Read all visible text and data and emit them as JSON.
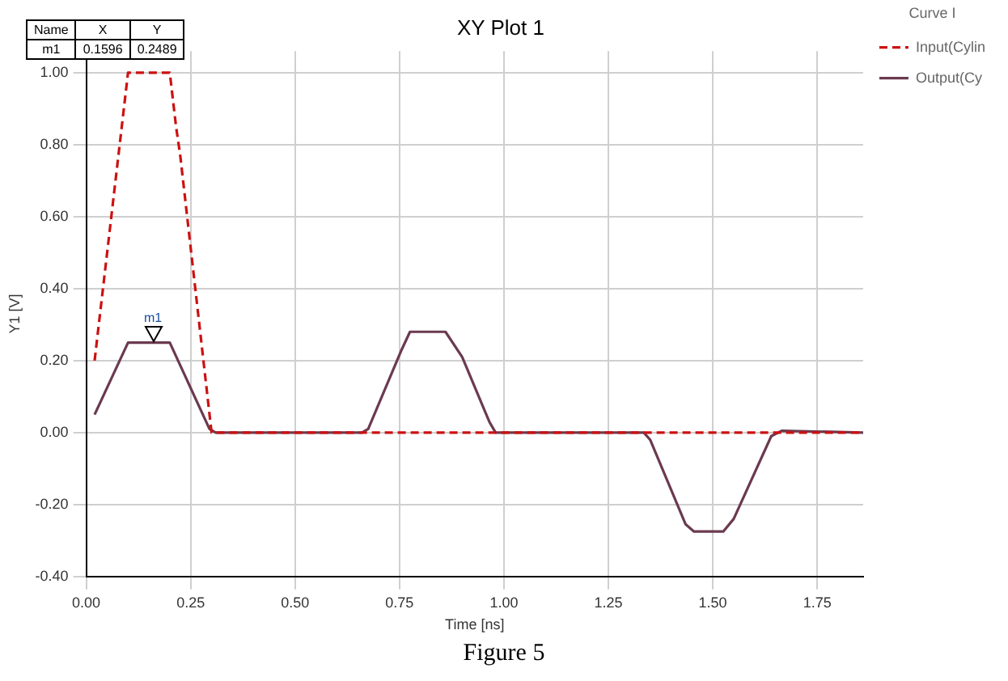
{
  "chart_data": {
    "type": "line",
    "title": "XY Plot 1",
    "xlabel": "Time [ns]",
    "ylabel": "Y1 [V]",
    "legend_title": "Curve I",
    "xlim": [
      0,
      1.86
    ],
    "xticks": [
      {
        "value": 0,
        "label": "0.00"
      },
      {
        "value": 0.25,
        "label": "0.25"
      },
      {
        "value": 0.5,
        "label": "0.50"
      },
      {
        "value": 0.75,
        "label": "0.75"
      },
      {
        "value": 1,
        "label": "1.00"
      },
      {
        "value": 1.25,
        "label": "1.25"
      },
      {
        "value": 1.5,
        "label": "1.50"
      },
      {
        "value": 1.75,
        "label": "1.75"
      }
    ],
    "ylim": [
      -0.4,
      1.06
    ],
    "yticks": [
      {
        "value": -0.4,
        "label": "-0.40"
      },
      {
        "value": -0.2,
        "label": "-0.20"
      },
      {
        "value": 0,
        "label": "0.00"
      },
      {
        "value": 0.2,
        "label": "0.20"
      },
      {
        "value": 0.4,
        "label": "0.40"
      },
      {
        "value": 0.6,
        "label": "0.60"
      },
      {
        "value": 0.8,
        "label": "0.80"
      },
      {
        "value": 1,
        "label": "1.00"
      }
    ],
    "grid": true,
    "legend": "top right",
    "marker": "none",
    "series": [
      {
        "name": "Input(Cylin",
        "color": "#cc1111",
        "line_style": "dashed",
        "x": [
          0.02,
          0.1,
          0.2,
          0.215,
          0.225,
          0.3,
          1.86
        ],
        "values": [
          0.2,
          1.0,
          1.0,
          0.85,
          0.77,
          0,
          0
        ]
      },
      {
        "name": "Output(Cy",
        "color": "#6b3a50",
        "line_style": "solid",
        "x": [
          0.02,
          0.1,
          0.2,
          0.295,
          0.31,
          0.66,
          0.675,
          0.755,
          0.775,
          0.86,
          0.9,
          0.965,
          0.98,
          1.335,
          1.35,
          1.435,
          1.455,
          1.525,
          1.55,
          1.64,
          1.665,
          1.86
        ],
        "values": [
          0.05,
          0.25,
          0.25,
          0.01,
          0,
          0,
          0.01,
          0.23,
          0.28,
          0.28,
          0.21,
          0.03,
          0,
          0,
          -0.02,
          -0.255,
          -0.275,
          -0.275,
          -0.24,
          -0.01,
          0.005,
          0
        ]
      }
    ],
    "annotations": [
      {
        "text": "m1",
        "x": 0.1596,
        "y": 0.2489
      },
      "Name",
      "X",
      "Y",
      "m1",
      "0.1596",
      "0.2489",
      "Figure 5"
    ]
  }
}
